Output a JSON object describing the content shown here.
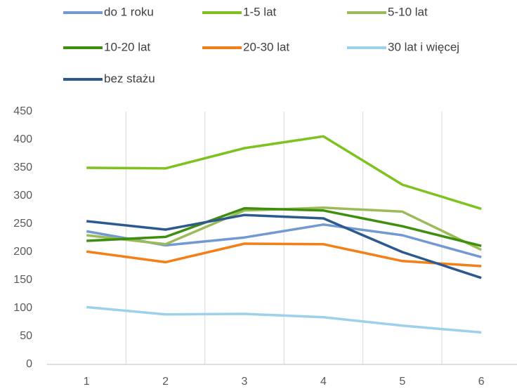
{
  "chart_data": {
    "type": "line",
    "categories": [
      "1",
      "2",
      "3",
      "4",
      "5",
      "6"
    ],
    "series": [
      {
        "name": "do 1 roku",
        "color": "#7299d2",
        "values": [
          237,
          212,
          226,
          249,
          230,
          191
        ]
      },
      {
        "name": "1-5 lat",
        "color": "#7dc21e",
        "values": [
          350,
          349,
          385,
          406,
          320,
          277
        ]
      },
      {
        "name": "5-10 lat",
        "color": "#9bbb59",
        "values": [
          230,
          214,
          274,
          279,
          272,
          204
        ]
      },
      {
        "name": "10-20 lat",
        "color": "#3f8f0e",
        "values": [
          220,
          227,
          278,
          274,
          246,
          211
        ]
      },
      {
        "name": "20-30 lat",
        "color": "#f57f17",
        "values": [
          201,
          182,
          215,
          214,
          184,
          175
        ]
      },
      {
        "name": "30 lat i więcej",
        "color": "#9dd0ea",
        "values": [
          102,
          89,
          90,
          84,
          69,
          57
        ]
      },
      {
        "name": "bez stażu",
        "color": "#2d5a8e",
        "values": [
          255,
          240,
          266,
          260,
          200,
          154
        ]
      }
    ],
    "ylim": [
      0,
      450
    ],
    "yticks": [
      0,
      50,
      100,
      150,
      200,
      250,
      300,
      350,
      400,
      450
    ],
    "grid": true,
    "legend": "top"
  }
}
